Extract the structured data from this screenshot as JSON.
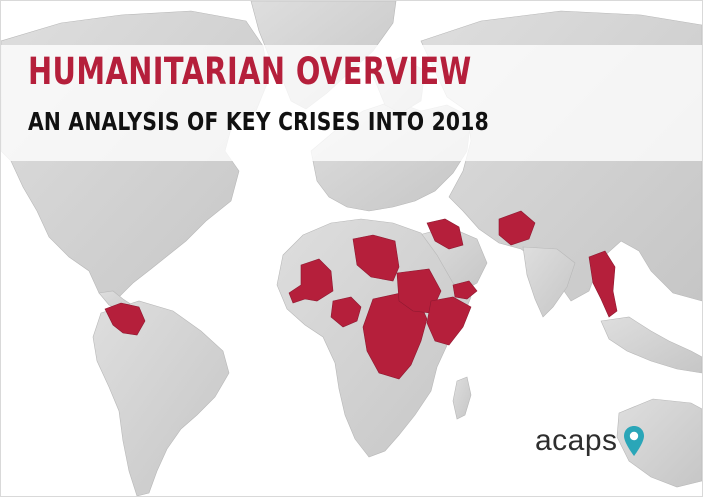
{
  "cover": {
    "title": "HUMANITARIAN OVERVIEW",
    "subtitle": "AN ANALYSIS OF KEY CRISES INTO 2018"
  },
  "logo": {
    "text": "acaps",
    "icon": "map-pin-icon",
    "pin_color": "#2aa6b8"
  },
  "colors": {
    "title": "#b51f3b",
    "highlight": "#b51f3b",
    "land": "#d3d3d3",
    "subtitle": "#111111"
  }
}
